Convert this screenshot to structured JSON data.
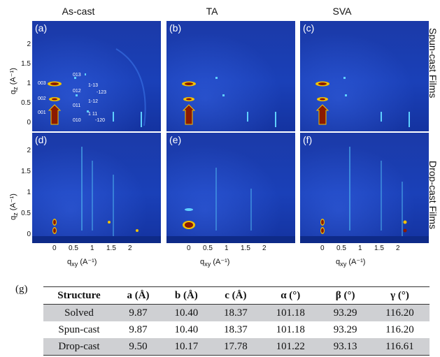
{
  "columns": [
    "As-cast",
    "TA",
    "SVA"
  ],
  "rows": [
    "Spun-cast Films",
    "Drop-cast Films"
  ],
  "panel_labels": [
    "(a)",
    "(b)",
    "(c)",
    "(d)",
    "(e)",
    "(f)"
  ],
  "axes": {
    "y_label": "qz (A⁻¹)",
    "x_label": "qxy (A⁻¹)",
    "y_label_main": "q",
    "y_label_sub": "z",
    "y_label_unit": " (A⁻¹)",
    "x_label_main": "q",
    "x_label_sub": "xy",
    "x_label_unit": " (A⁻¹)",
    "y_ticks": [
      "0",
      "0.5",
      "1",
      "1.5",
      "2"
    ],
    "x_ticks": [
      "0",
      "0.5",
      "1",
      "1.5",
      "2"
    ]
  },
  "peak_labels": [
    "003",
    "002",
    "001",
    "013",
    "012",
    "011",
    "010",
    "1-13",
    "-123",
    "1-12",
    "1 11",
    "-120"
  ],
  "table": {
    "label": "(g)",
    "headers": [
      "Structure",
      "a (Å)",
      "b (Å)",
      "c (Å)",
      "α (°)",
      "β (°)",
      "γ (°)"
    ],
    "rows": [
      [
        "Solved",
        "9.87",
        "10.40",
        "18.37",
        "101.18",
        "93.29",
        "116.20"
      ],
      [
        "Spun-cast",
        "9.87",
        "10.40",
        "18.37",
        "101.18",
        "93.29",
        "116.20"
      ],
      [
        "Drop-cast",
        "9.50",
        "10.17",
        "17.78",
        "101.22",
        "93.13",
        "116.61"
      ]
    ]
  },
  "colors": {
    "panel_background": "#1a40b8",
    "peak_hot": "#8b1a00",
    "peak_warm": "#f2c200",
    "peak_cyan": "#5fd0ff",
    "table_shade": "#cfd0d3"
  }
}
